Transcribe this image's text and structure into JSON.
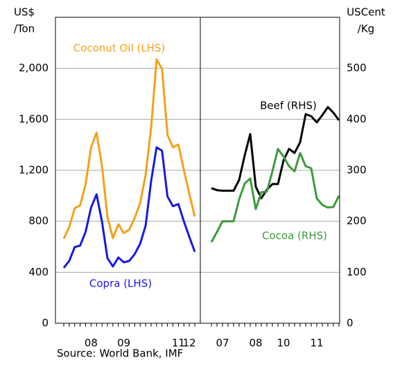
{
  "chart_data": [
    {
      "type": "line",
      "y_label": [
        "US$",
        "/Ton"
      ],
      "categories": [
        null,
        null,
        null,
        null,
        null,
        "08",
        null,
        null,
        null,
        null,
        null,
        "09",
        null,
        null,
        null,
        null,
        null,
        null,
        null,
        null,
        null,
        "11",
        null,
        "12",
        null
      ],
      "ylim": [
        0,
        2400
      ],
      "yticks": [
        0,
        400,
        800,
        {
          "value": 1200,
          "label": "1,200"
        },
        {
          "value": 1600,
          "label": "1,600"
        },
        {
          "value": 2000,
          "label": "2,000"
        }
      ],
      "grid": true,
      "series": [
        {
          "name": "Coconut Oil (LHS)",
          "color": "#f5a01a",
          "values": [
            663,
            755,
            902,
            924,
            1092,
            1380,
            1495,
            1234,
            837,
            668,
            777,
            707,
            734,
            826,
            946,
            1163,
            1533,
            2071,
            1995,
            1478,
            1380,
            1402,
            1201,
            1016,
            837
          ]
        },
        {
          "name": "Copra (LHS)",
          "color": "#1818e0",
          "values": [
            435,
            489,
            598,
            609,
            717,
            908,
            1011,
            799,
            511,
            446,
            516,
            478,
            489,
            543,
            625,
            766,
            1114,
            1380,
            1353,
            995,
            918,
            935,
            799,
            679,
            560
          ]
        }
      ]
    },
    {
      "type": "line",
      "y2_label": [
        "USCent",
        "/Kg"
      ],
      "categories": [
        null,
        null,
        "07",
        null,
        null,
        null,
        null,
        null,
        "08",
        null,
        null,
        null,
        null,
        "10",
        null,
        null,
        null,
        null,
        null,
        "11",
        null,
        null,
        null,
        null
      ],
      "y2lim": [
        0,
        600
      ],
      "y2ticks": [
        0,
        100,
        200,
        300,
        400,
        500
      ],
      "grid": true,
      "series": [
        {
          "name": "Beef (RHS)",
          "color": "#000000",
          "axis": "y2",
          "values": [
            265,
            261,
            260,
            260,
            260,
            281,
            329,
            371,
            268,
            245,
            262,
            273,
            273,
            319,
            342,
            334,
            355,
            410,
            406,
            394,
            408,
            424,
            413,
            398
          ]
        },
        {
          "name": "Cocoa (RHS)",
          "color": "#3c9a3c",
          "axis": "y2",
          "values": [
            159,
            179,
            200,
            200,
            200,
            243,
            274,
            284,
            224,
            257,
            258,
            298,
            342,
            327,
            308,
            298,
            334,
            308,
            304,
            245,
            232,
            227,
            228,
            250
          ]
        }
      ]
    }
  ],
  "source": "Source: World Bank, IMF"
}
